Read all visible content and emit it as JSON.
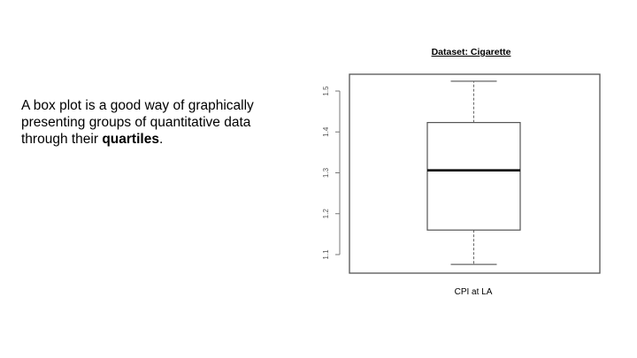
{
  "slide": {
    "text_before": "A box plot is a good way of graphically presenting groups of quantitative data through their ",
    "text_bold": "quartiles",
    "text_after": "."
  },
  "chart_data": {
    "type": "boxplot",
    "title": "Dataset: Cigarette",
    "xlabel": "CPI at LA",
    "ylabel": "",
    "ylim": [
      1.06,
      1.54
    ],
    "yticks": [
      1.1,
      1.2,
      1.3,
      1.4,
      1.5
    ],
    "ytick_labels": [
      "1.1",
      "1.2",
      "1.3",
      "1.4",
      "1.5"
    ],
    "box": {
      "min": 1.076,
      "q1": 1.16,
      "median": 1.306,
      "q3": 1.423,
      "max": 1.524
    },
    "grid": false,
    "colors": {
      "box": "#555555",
      "median": "#000000",
      "whisker": "#666666",
      "frame": "#555555"
    }
  }
}
